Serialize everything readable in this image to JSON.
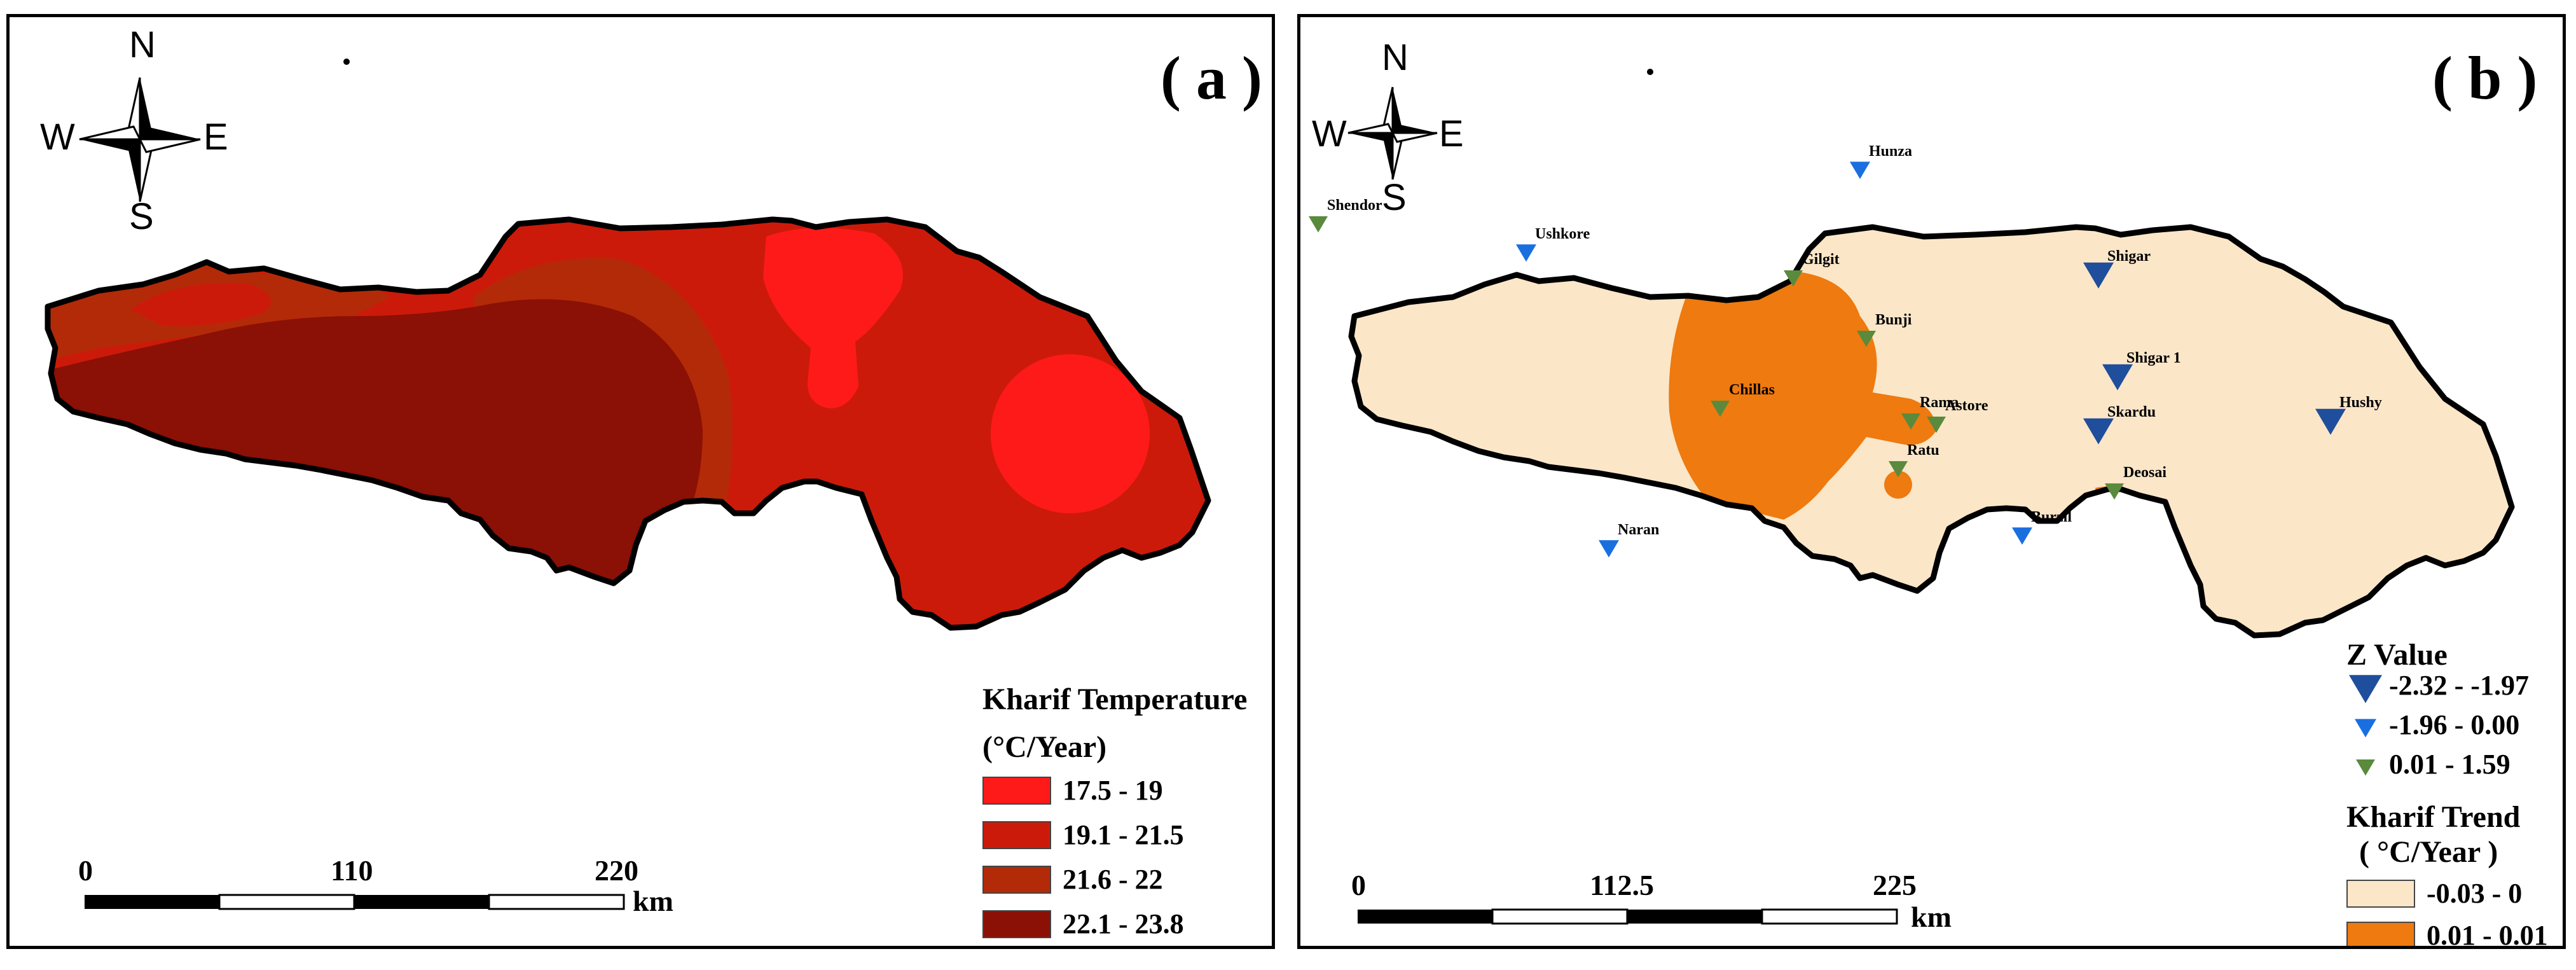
{
  "panel_a": {
    "label": "( a )",
    "compass": {
      "n": "N",
      "s": "S",
      "e": "E",
      "w": "W"
    },
    "legend": {
      "title": "Kharif Temperature",
      "unit": "(°C/Year)",
      "items": [
        {
          "label": "17.5 - 19",
          "color": "#ff1a1a"
        },
        {
          "label": "19.1 - 21.5",
          "color": "#cc1a0a"
        },
        {
          "label": "21.6 - 22",
          "color": "#b32a08"
        },
        {
          "label": "22.1 - 23.8",
          "color": "#8b1005"
        }
      ]
    },
    "scale": {
      "ticks": [
        "0",
        "110",
        "220"
      ],
      "unit": "km"
    }
  },
  "panel_b": {
    "label": "( b )",
    "compass": {
      "n": "N",
      "s": "S",
      "e": "E",
      "w": "W"
    },
    "legend": {
      "z_title": "Z Value",
      "z_items": [
        {
          "label": "-2.32 - -1.97",
          "color": "#1f4e9c"
        },
        {
          "label": "-1.96 - 0.00",
          "color": "#1a6fe0"
        },
        {
          "label": "0.01 - 1.59",
          "color": "#5a8a3c"
        }
      ],
      "trend_title": "Kharif Trend",
      "trend_unit": "( °C/Year )",
      "trend_items": [
        {
          "label": "-0.03 - 0",
          "color": "#fbe6c8"
        },
        {
          "label": "0.01 - 0.01",
          "color": "#ee7a10"
        }
      ]
    },
    "scale": {
      "ticks": [
        "0",
        "112.5",
        "225"
      ],
      "unit": "km"
    },
    "stations": [
      {
        "name": "Hunza",
        "class": "mid"
      },
      {
        "name": "Shendor",
        "class": "pos"
      },
      {
        "name": "Ushkore",
        "class": "mid"
      },
      {
        "name": "Gilgit",
        "class": "pos"
      },
      {
        "name": "Shigar",
        "class": "low"
      },
      {
        "name": "Bunji",
        "class": "pos"
      },
      {
        "name": "Shigar 1",
        "class": "low"
      },
      {
        "name": "Chillas",
        "class": "pos"
      },
      {
        "name": "Rama",
        "class": "pos"
      },
      {
        "name": "Astore",
        "class": "pos"
      },
      {
        "name": "Skardu",
        "class": "low"
      },
      {
        "name": "Hushy",
        "class": "low"
      },
      {
        "name": "Ratu",
        "class": "pos"
      },
      {
        "name": "Deosai",
        "class": "pos"
      },
      {
        "name": "Burzil",
        "class": "mid"
      },
      {
        "name": "Naran",
        "class": "mid"
      }
    ]
  }
}
